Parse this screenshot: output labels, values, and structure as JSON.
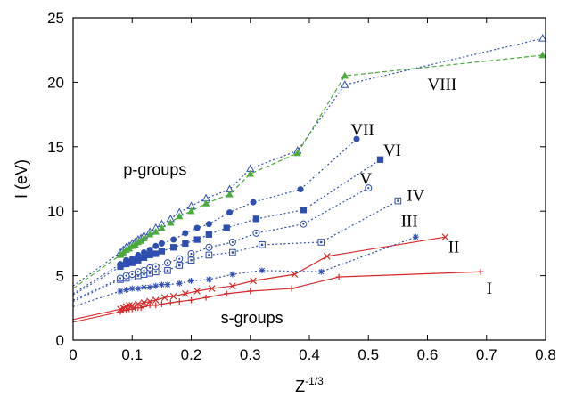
{
  "chart_data": {
    "type": "line",
    "title": "",
    "xlabel": "Z",
    "xlabel_superscript": "-1/3",
    "ylabel": "I (eV)",
    "xlim": [
      0,
      0.8
    ],
    "ylim": [
      0,
      25
    ],
    "xticks": [
      "0",
      "0.1",
      "0.2",
      "0.3",
      "0.4",
      "0.5",
      "0.6",
      "0.7",
      "0.8"
    ],
    "yticks": [
      "0",
      "5",
      "10",
      "15",
      "20",
      "25"
    ],
    "grid": false,
    "legend": "none",
    "annotations": [
      {
        "text": "p-groups",
        "x": 0.085,
        "y": 12.8
      },
      {
        "text": "s-groups",
        "x": 0.25,
        "y": 1.3
      },
      {
        "text": "VIII",
        "x": 0.6,
        "y": 19.4
      },
      {
        "text": "VII",
        "x": 0.47,
        "y": 15.9
      },
      {
        "text": "VI",
        "x": 0.525,
        "y": 14.3
      },
      {
        "text": "V",
        "x": 0.485,
        "y": 12.1
      },
      {
        "text": "IV",
        "x": 0.565,
        "y": 10.8
      },
      {
        "text": "III",
        "x": 0.555,
        "y": 8.8
      },
      {
        "text": "II",
        "x": 0.635,
        "y": 6.8
      },
      {
        "text": "I",
        "x": 0.7,
        "y": 3.6
      }
    ],
    "series": [
      {
        "color": "#d42a2a",
        "style": "solid",
        "marker": "plus",
        "x": [
          0.08,
          0.085,
          0.09,
          0.095,
          0.1,
          0.105,
          0.11,
          0.115,
          0.12,
          0.13,
          0.14,
          0.15,
          0.165,
          0.18,
          0.2,
          0.225,
          0.26,
          0.3,
          0.37,
          0.45,
          0.69
        ],
        "y": [
          2.2,
          2.3,
          2.3,
          2.4,
          2.4,
          2.5,
          2.5,
          2.5,
          2.6,
          2.7,
          2.7,
          2.8,
          2.9,
          3.0,
          3.1,
          3.3,
          3.6,
          3.8,
          4.0,
          4.9,
          5.3
        ]
      },
      {
        "color": "#d42a2a",
        "style": "solid",
        "marker": "x",
        "x": [
          0.08,
          0.085,
          0.09,
          0.095,
          0.1,
          0.11,
          0.12,
          0.13,
          0.14,
          0.155,
          0.17,
          0.19,
          0.21,
          0.235,
          0.27,
          0.305,
          0.375,
          0.43,
          0.63
        ],
        "y": [
          2.4,
          2.5,
          2.6,
          2.7,
          2.7,
          2.8,
          2.9,
          3.0,
          3.1,
          3.3,
          3.4,
          3.6,
          3.8,
          4.0,
          4.2,
          4.6,
          5.1,
          6.5,
          8.0
        ]
      },
      {
        "color": "#2f4fb0",
        "style": "dotted",
        "marker": "asterisk",
        "x": [
          0.08,
          0.09,
          0.1,
          0.11,
          0.12,
          0.13,
          0.14,
          0.15,
          0.16,
          0.18,
          0.2,
          0.23,
          0.27,
          0.32,
          0.42,
          0.58
        ],
        "y": [
          3.8,
          3.9,
          4.0,
          4.0,
          4.1,
          4.1,
          4.2,
          4.3,
          4.3,
          4.4,
          4.6,
          4.7,
          5.1,
          5.4,
          5.3,
          8.0
        ]
      },
      {
        "color": "#2f4fb0",
        "style": "dotted",
        "marker": "square-open",
        "x": [
          0.08,
          0.09,
          0.1,
          0.11,
          0.12,
          0.13,
          0.14,
          0.16,
          0.18,
          0.2,
          0.23,
          0.27,
          0.32,
          0.42,
          0.55
        ],
        "y": [
          4.7,
          4.8,
          4.9,
          5.0,
          5.1,
          5.2,
          5.3,
          5.4,
          5.8,
          6.2,
          6.6,
          6.8,
          7.4,
          7.6,
          10.8
        ]
      },
      {
        "color": "#2f4fb0",
        "style": "dotted",
        "marker": "circle-open",
        "x": [
          0.08,
          0.09,
          0.1,
          0.11,
          0.12,
          0.13,
          0.14,
          0.16,
          0.18,
          0.2,
          0.23,
          0.27,
          0.31,
          0.39,
          0.5
        ],
        "y": [
          4.8,
          5.0,
          5.1,
          5.3,
          5.4,
          5.6,
          5.7,
          6.0,
          6.3,
          6.7,
          7.2,
          7.6,
          8.3,
          9.0,
          11.8
        ]
      },
      {
        "color": "#2f4fb0",
        "style": "dotted",
        "marker": "square",
        "x": [
          0.08,
          0.09,
          0.1,
          0.11,
          0.12,
          0.13,
          0.14,
          0.15,
          0.17,
          0.19,
          0.21,
          0.23,
          0.26,
          0.31,
          0.39,
          0.52
        ],
        "y": [
          5.7,
          5.9,
          6.0,
          6.2,
          6.4,
          6.6,
          6.7,
          6.9,
          7.2,
          7.5,
          7.8,
          8.2,
          8.7,
          9.4,
          10.1,
          14.0
        ]
      },
      {
        "color": "#2f4fb0",
        "style": "dotted",
        "marker": "circle",
        "x": [
          0.08,
          0.09,
          0.1,
          0.11,
          0.12,
          0.13,
          0.14,
          0.15,
          0.17,
          0.19,
          0.21,
          0.23,
          0.265,
          0.305,
          0.385,
          0.48
        ],
        "y": [
          5.9,
          6.2,
          6.3,
          6.6,
          6.8,
          7.0,
          7.3,
          7.5,
          7.8,
          8.3,
          8.7,
          9.0,
          9.9,
          10.7,
          11.7,
          15.6
        ]
      },
      {
        "color": "#2f4fb0",
        "style": "dotted",
        "marker": "triangle-open",
        "x": [
          0.08,
          0.085,
          0.09,
          0.095,
          0.1,
          0.105,
          0.11,
          0.115,
          0.12,
          0.13,
          0.14,
          0.15,
          0.165,
          0.18,
          0.2,
          0.225,
          0.265,
          0.3,
          0.38,
          0.46,
          0.795
        ],
        "y": [
          6.8,
          7.0,
          7.2,
          7.3,
          7.5,
          7.6,
          7.8,
          7.9,
          8.1,
          8.4,
          8.7,
          9.0,
          9.4,
          9.9,
          10.4,
          11.0,
          11.7,
          13.3,
          14.7,
          19.8,
          23.4
        ]
      },
      {
        "color": "#4aaa3c",
        "style": "dashed",
        "marker": "triangle",
        "x": [
          0.08,
          0.085,
          0.09,
          0.095,
          0.1,
          0.105,
          0.11,
          0.115,
          0.12,
          0.13,
          0.14,
          0.15,
          0.165,
          0.18,
          0.2,
          0.225,
          0.265,
          0.3,
          0.38,
          0.46,
          0.795
        ],
        "y": [
          6.6,
          6.8,
          7.0,
          7.1,
          7.3,
          7.4,
          7.6,
          7.7,
          7.9,
          8.2,
          8.4,
          8.7,
          9.1,
          9.6,
          10.0,
          10.6,
          11.3,
          12.9,
          14.5,
          20.5,
          22.1
        ]
      }
    ],
    "fit_lines": [
      {
        "color": "#d42a2a",
        "style": "solid",
        "x": [
          0,
          0.08
        ],
        "y": [
          1.4,
          2.2
        ]
      },
      {
        "color": "#d42a2a",
        "style": "solid",
        "x": [
          0,
          0.08
        ],
        "y": [
          1.6,
          2.4
        ]
      },
      {
        "color": "#2f4fb0",
        "style": "dotted",
        "x": [
          0,
          0.08
        ],
        "y": [
          2.6,
          3.8
        ]
      },
      {
        "color": "#2f4fb0",
        "style": "dotted",
        "x": [
          0,
          0.08
        ],
        "y": [
          3.0,
          4.7
        ]
      },
      {
        "color": "#2f4fb0",
        "style": "dotted",
        "x": [
          0,
          0.08
        ],
        "y": [
          3.1,
          4.8
        ]
      },
      {
        "color": "#2f4fb0",
        "style": "dotted",
        "x": [
          0,
          0.08
        ],
        "y": [
          3.5,
          5.7
        ]
      },
      {
        "color": "#2f4fb0",
        "style": "dotted",
        "x": [
          0,
          0.08
        ],
        "y": [
          3.6,
          5.9
        ]
      },
      {
        "color": "#2f4fb0",
        "style": "dotted",
        "x": [
          0,
          0.08
        ],
        "y": [
          4.2,
          6.8
        ]
      },
      {
        "color": "#4aaa3c",
        "style": "dashed",
        "x": [
          0,
          0.08
        ],
        "y": [
          4.0,
          6.6
        ]
      }
    ]
  }
}
